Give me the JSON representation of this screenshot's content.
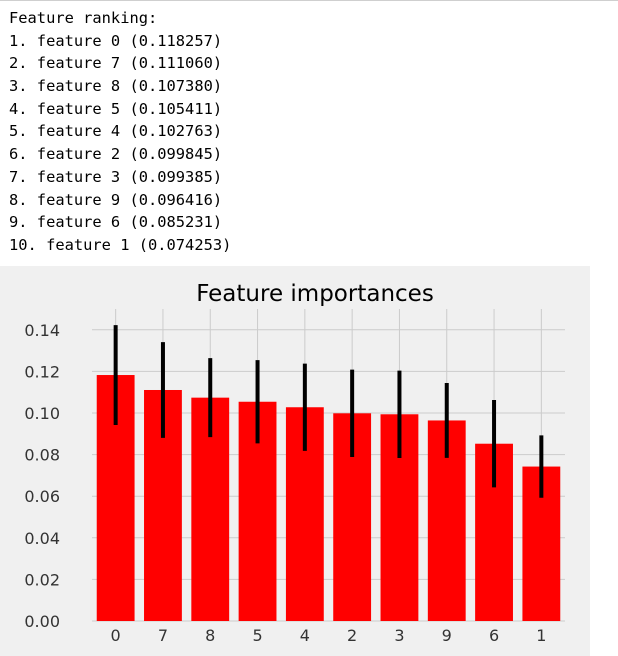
{
  "ranking": {
    "header": "Feature ranking:",
    "lines": [
      "1. feature 0 (0.118257)",
      "2. feature 7 (0.111060)",
      "3. feature 8 (0.107380)",
      "4. feature 5 (0.105411)",
      "5. feature 4 (0.102763)",
      "6. feature 2 (0.099845)",
      "7. feature 3 (0.099385)",
      "8. feature 9 (0.096416)",
      "9. feature 6 (0.085231)",
      "10. feature 1 (0.074253)"
    ]
  },
  "chart_data": {
    "type": "bar",
    "title": "Feature importances",
    "xlabel": "",
    "ylabel": "",
    "categories": [
      "0",
      "7",
      "8",
      "5",
      "4",
      "2",
      "3",
      "9",
      "6",
      "1"
    ],
    "values": [
      0.118257,
      0.11106,
      0.10738,
      0.105411,
      0.102763,
      0.099845,
      0.099385,
      0.096416,
      0.085231,
      0.074253
    ],
    "errors": [
      0.024,
      0.023,
      0.019,
      0.02,
      0.021,
      0.021,
      0.021,
      0.018,
      0.021,
      0.015
    ],
    "ylim": [
      0,
      0.15
    ],
    "yticks": [
      "0.00",
      "0.02",
      "0.04",
      "0.06",
      "0.08",
      "0.10",
      "0.12",
      "0.14"
    ],
    "grid": true,
    "colors": {
      "bar": "#ff0000",
      "error_bar": "#000000",
      "background": "#f0f0f0",
      "grid": "#cbcbcb"
    }
  }
}
